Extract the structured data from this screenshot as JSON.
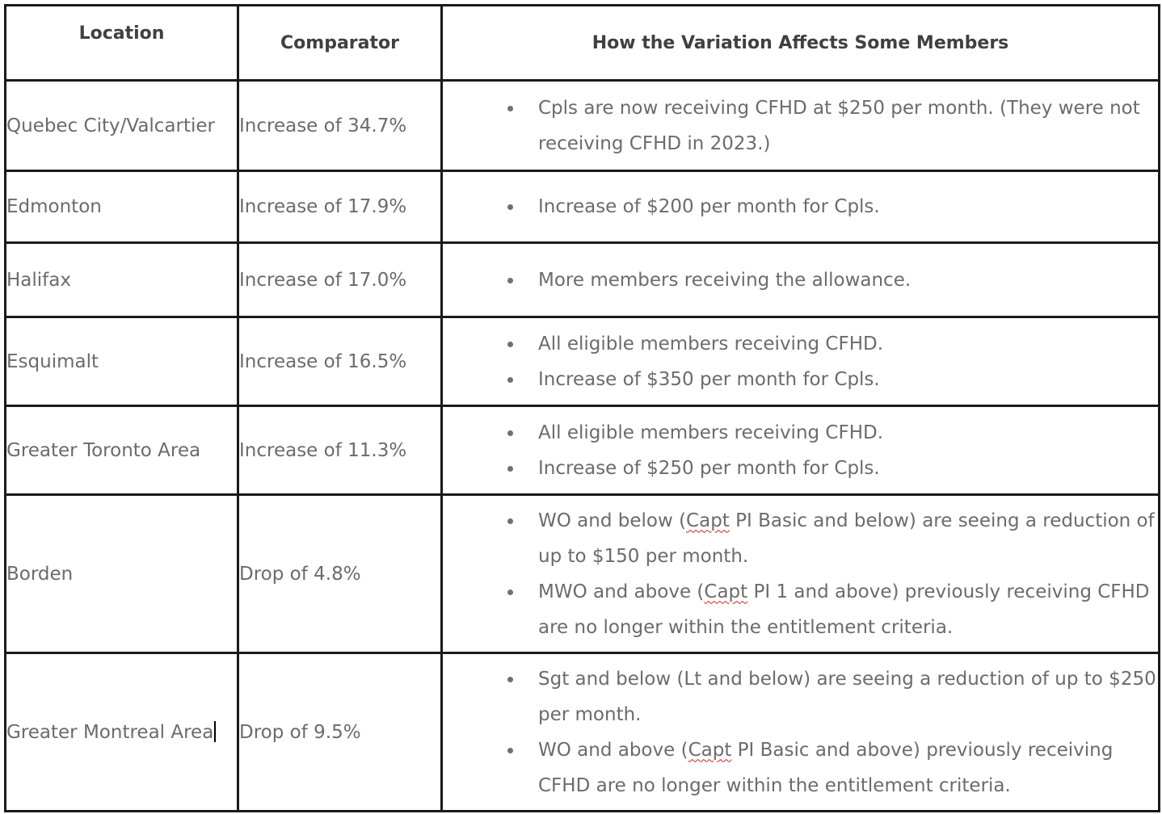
{
  "headers": {
    "location": "Location",
    "comparator": "Comparator",
    "effect": "How the Variation Affects Some Members"
  },
  "rows": [
    {
      "location": "Quebec City/Valcartier",
      "comparator": "Increase of 34.7%",
      "effects": [
        "Cpls are now receiving CFHD at $250 per month. (They were not receiving CFHD in 2023.)"
      ]
    },
    {
      "location": "Edmonton",
      "comparator": "Increase of 17.9%",
      "effects": [
        "Increase of $200 per month for Cpls."
      ]
    },
    {
      "location": "Halifax",
      "comparator": "Increase of 17.0%",
      "effects": [
        "More members receiving the allowance."
      ]
    },
    {
      "location": "Esquimalt",
      "comparator": "Increase of 16.5%",
      "effects": [
        "All eligible members receiving CFHD.",
        "Increase of $350 per month for Cpls."
      ]
    },
    {
      "location": "Greater Toronto Area",
      "comparator": "Increase of 11.3%",
      "effects": [
        "All eligible members receiving CFHD.",
        "Increase of $250 per month for Cpls."
      ]
    },
    {
      "location": "Borden",
      "comparator": "Drop of 4.8%",
      "effects": [
        {
          "before": "WO and below (",
          "flagged": "Capt",
          "after": " PI Basic and below) are seeing a reduction of up to $150 per month."
        },
        {
          "before": "MWO and above (",
          "flagged": "Capt",
          "after": " PI 1 and above) previously receiving CFHD are no longer within the entitlement criteria."
        }
      ]
    },
    {
      "location": "Greater Montreal Area",
      "comparator": "Drop of 9.5%",
      "effects": [
        "Sgt and below (Lt and below) are seeing a reduction of up to $250 per month.",
        {
          "before": "WO and above (",
          "flagged": "Capt",
          "after": " PI Basic and above) previously receiving CFHD are no longer within the entitlement criteria."
        }
      ]
    }
  ]
}
